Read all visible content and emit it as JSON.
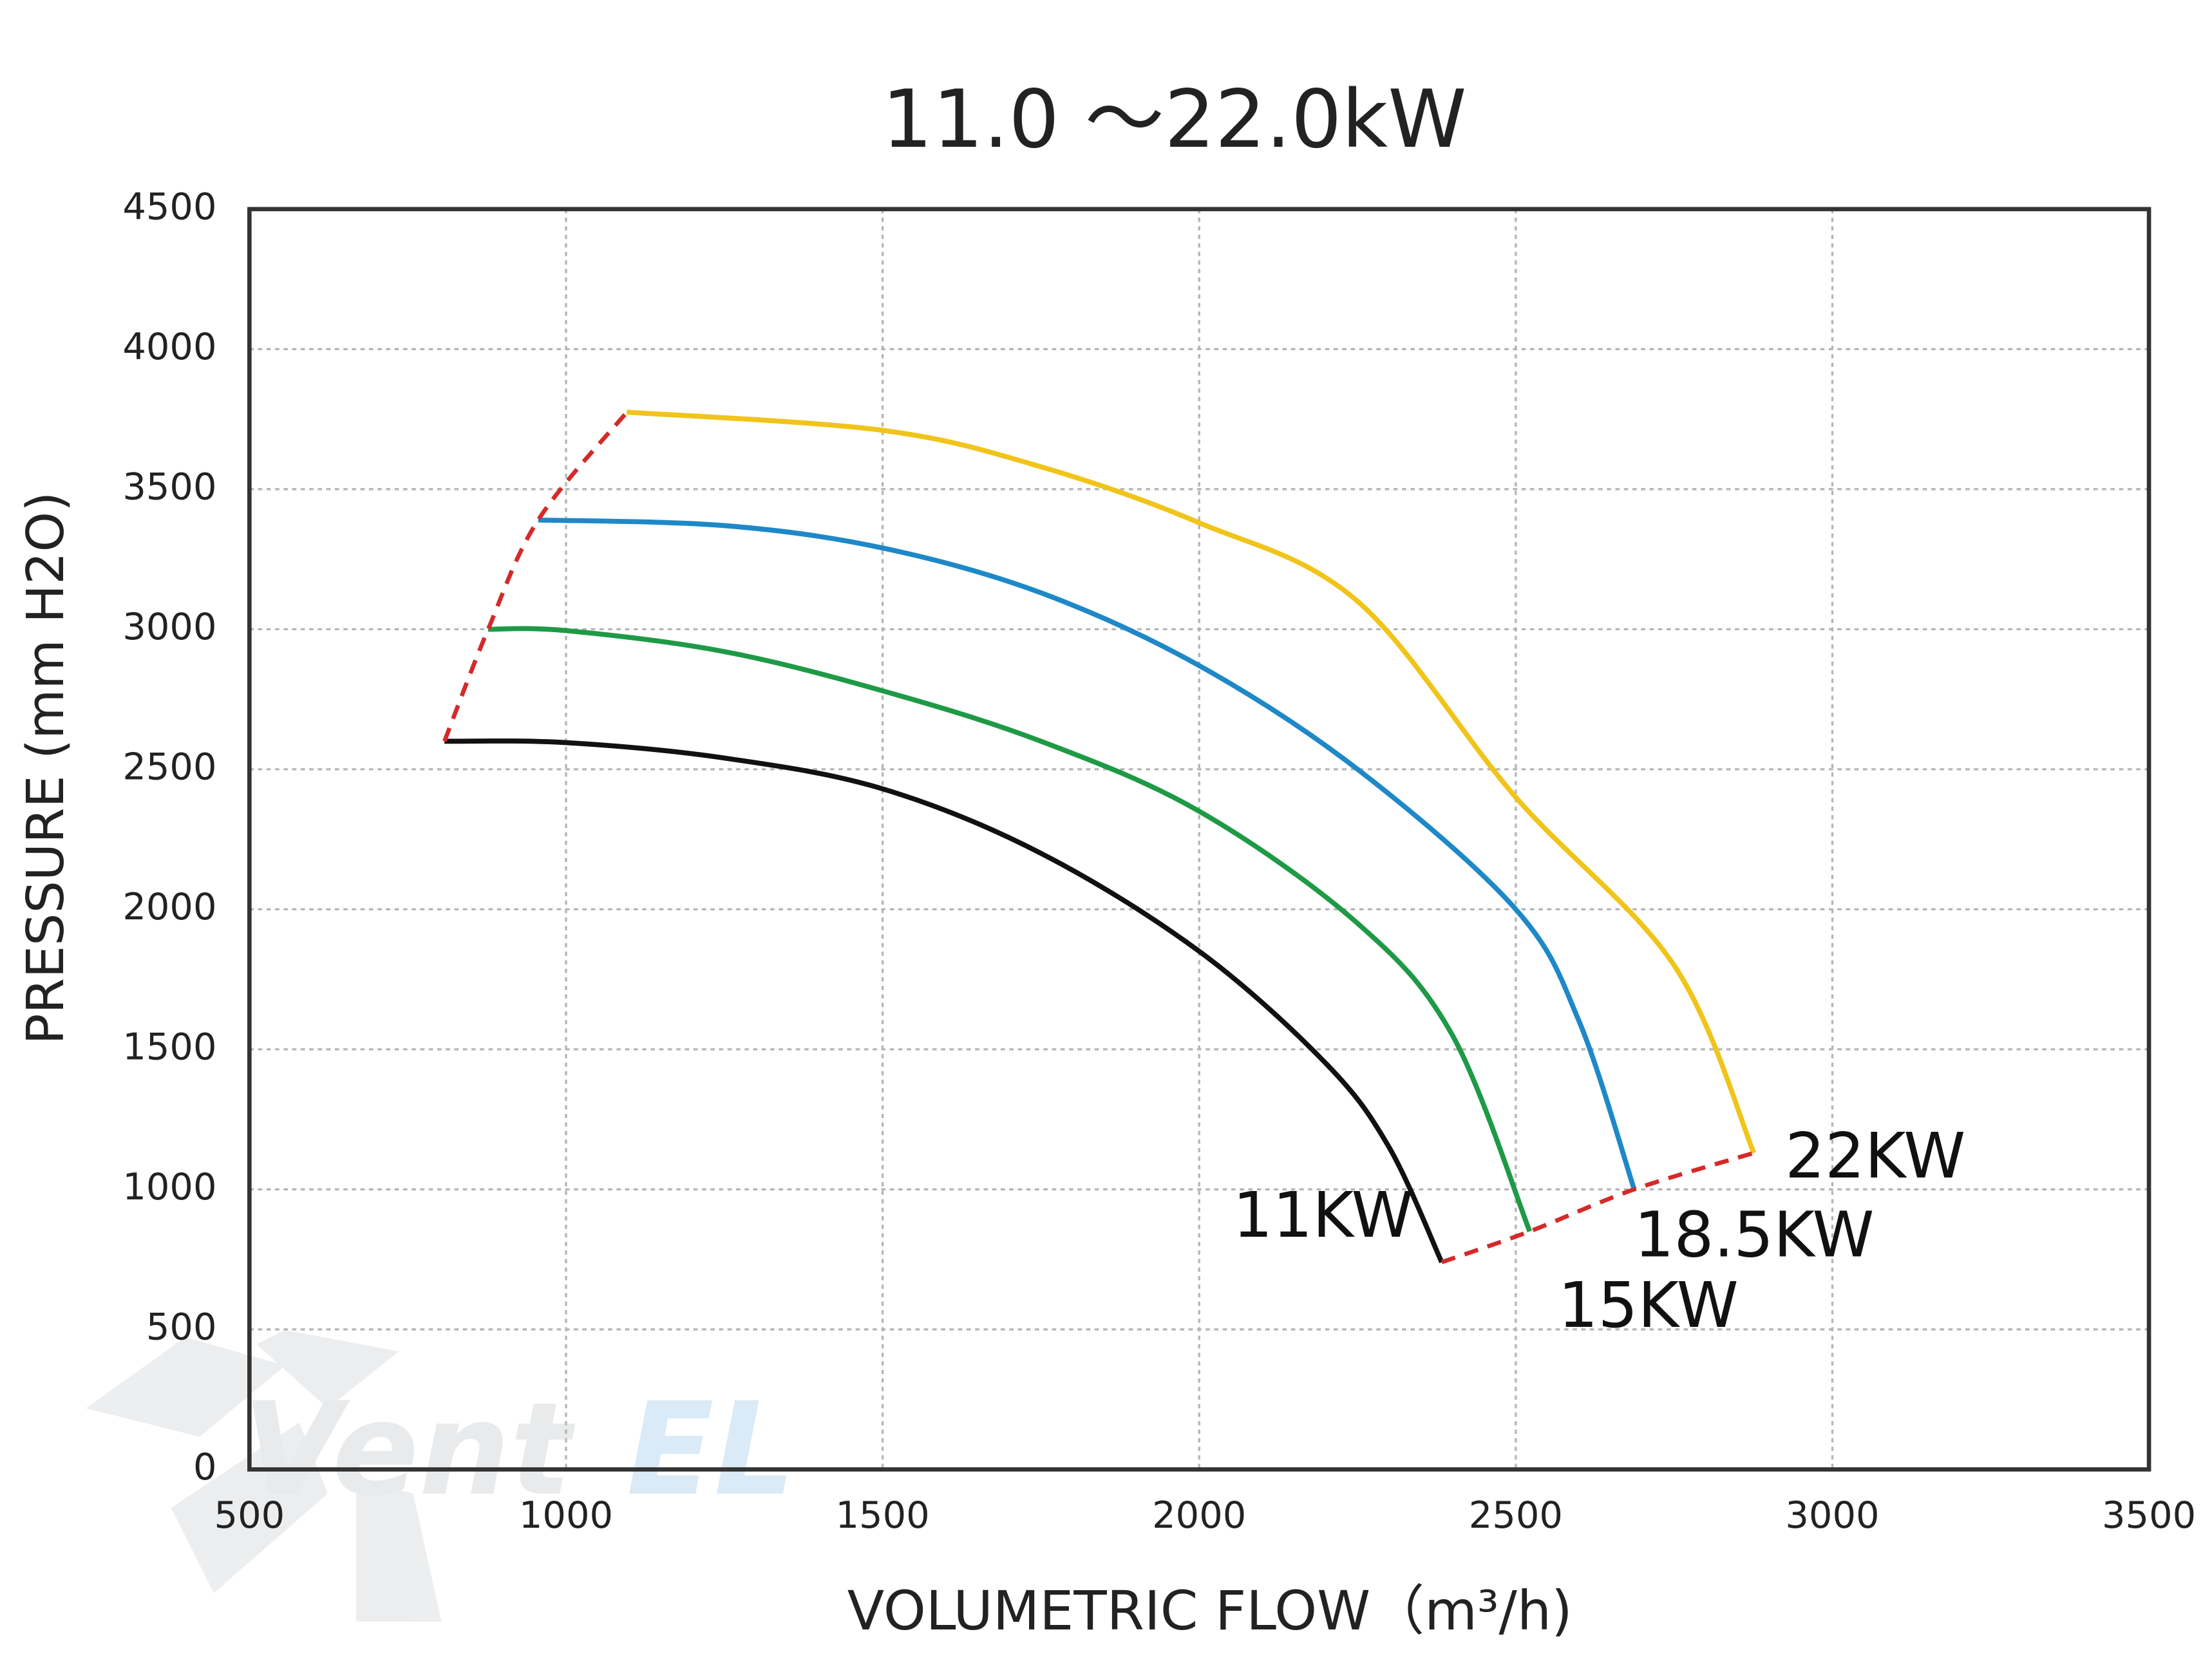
{
  "chart_data": {
    "type": "line",
    "title": "11.0 ～22.0kW",
    "x_label": "VOLUMETRIC FLOW（m³/h)",
    "y_label": "PRESSURE (mm H2O)",
    "watermark": [
      "Vent",
      "EL"
    ],
    "xlim": [
      500,
      3500
    ],
    "xticks": [
      500,
      1000,
      1500,
      2000,
      2500,
      3000,
      3500
    ],
    "ylim": [
      0,
      4500
    ],
    "yticks": [
      0,
      500,
      1000,
      1500,
      2000,
      2500,
      3000,
      3500,
      4000,
      4500
    ],
    "grid": true,
    "series": [
      {
        "name": "11KW",
        "color": "#111111",
        "x": [
          808,
          1000,
          1250,
          1500,
          1750,
          2000,
          2200,
          2300,
          2383
        ],
        "values": [
          2600,
          2595,
          2540,
          2430,
          2200,
          1850,
          1450,
          1150,
          740
        ]
      },
      {
        "name": "15KW",
        "color": "#1e9a46",
        "x": [
          877,
          1000,
          1250,
          1500,
          1750,
          2000,
          2250,
          2400,
          2522
        ],
        "values": [
          3000,
          2995,
          2920,
          2780,
          2600,
          2350,
          1950,
          1550,
          850
        ]
      },
      {
        "name": "18.5KW",
        "color": "#1e88c8",
        "x": [
          956,
          1250,
          1500,
          1750,
          2000,
          2250,
          2500,
          2600,
          2687
        ],
        "values": [
          3390,
          3370,
          3290,
          3130,
          2870,
          2500,
          2000,
          1600,
          1000
        ]
      },
      {
        "name": "22KW",
        "color": "#f0c419",
        "x": [
          1096,
          1500,
          1750,
          2000,
          2250,
          2500,
          2750,
          2876
        ],
        "values": [
          3775,
          3710,
          3580,
          3380,
          3100,
          2400,
          1800,
          1130
        ]
      }
    ],
    "limit_lines": [
      {
        "color": "#d42a2a",
        "x": [
          808,
          877,
          956,
          1096
        ],
        "values": [
          2600,
          3000,
          3390,
          3775
        ]
      },
      {
        "color": "#d42a2a",
        "x": [
          2383,
          2522,
          2687,
          2876
        ],
        "values": [
          740,
          850,
          1000,
          1130
        ]
      }
    ]
  }
}
